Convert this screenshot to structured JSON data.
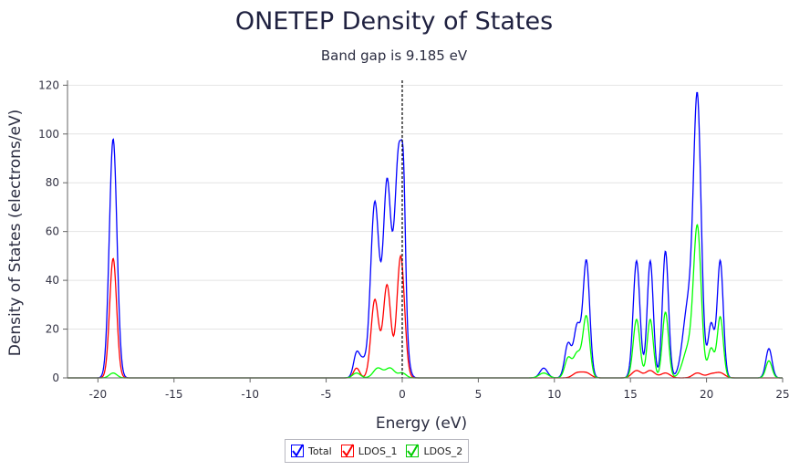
{
  "chart_data": {
    "type": "line",
    "title": "ONETEP Density of States",
    "subtitle": "Band gap is 9.185 eV",
    "xlabel": "Energy (eV)",
    "ylabel": "Density of States (electrons/eV)",
    "xlim": [
      -22,
      25
    ],
    "ylim": [
      0,
      122
    ],
    "xticks": [
      -20,
      -15,
      -10,
      -5,
      0,
      5,
      10,
      15,
      20,
      25
    ],
    "yticks": [
      0,
      20,
      40,
      60,
      80,
      100,
      120
    ],
    "fermi_level": 0,
    "legend_position": "bottom-center",
    "series": [
      {
        "name": "Total",
        "color": "#0000ff",
        "checked": true,
        "peaks": [
          [
            -19.0,
            98,
            0.25
          ],
          [
            -3.0,
            10,
            0.2
          ],
          [
            -2.6,
            6,
            0.2
          ],
          [
            -1.8,
            72,
            0.28
          ],
          [
            -1.0,
            78,
            0.25
          ],
          [
            -0.2,
            95,
            0.3
          ],
          [
            0.1,
            30,
            0.12
          ],
          [
            9.3,
            4,
            0.25
          ],
          [
            10.9,
            14,
            0.22
          ],
          [
            11.5,
            21,
            0.22
          ],
          [
            12.1,
            48,
            0.22
          ],
          [
            15.4,
            48,
            0.22
          ],
          [
            16.3,
            48,
            0.2
          ],
          [
            17.3,
            52,
            0.2
          ],
          [
            18.8,
            30,
            0.35
          ],
          [
            19.4,
            110,
            0.25
          ],
          [
            20.3,
            22,
            0.2
          ],
          [
            20.9,
            48,
            0.2
          ],
          [
            24.1,
            12,
            0.2
          ]
        ]
      },
      {
        "name": "LDOS_1",
        "color": "#ff0000",
        "checked": true,
        "peaks": [
          [
            -19.0,
            49,
            0.23
          ],
          [
            -3.0,
            4,
            0.2
          ],
          [
            -1.8,
            32,
            0.25
          ],
          [
            -1.0,
            38,
            0.25
          ],
          [
            -0.1,
            50,
            0.25
          ],
          [
            11.5,
            2,
            0.3
          ],
          [
            12.1,
            2,
            0.3
          ],
          [
            15.4,
            3,
            0.3
          ],
          [
            16.3,
            3,
            0.3
          ],
          [
            17.3,
            2,
            0.3
          ],
          [
            19.4,
            2,
            0.3
          ],
          [
            20.3,
            1.5,
            0.3
          ],
          [
            20.9,
            2,
            0.3
          ]
        ]
      },
      {
        "name": "LDOS_2",
        "color": "#00ff00",
        "checked": true,
        "peaks": [
          [
            -19.0,
            2,
            0.25
          ],
          [
            -3.0,
            2,
            0.25
          ],
          [
            -1.6,
            4,
            0.3
          ],
          [
            -0.8,
            4,
            0.3
          ],
          [
            0.0,
            2,
            0.25
          ],
          [
            9.3,
            2,
            0.3
          ],
          [
            10.9,
            8,
            0.22
          ],
          [
            11.5,
            10,
            0.25
          ],
          [
            12.1,
            25,
            0.22
          ],
          [
            15.4,
            24,
            0.22
          ],
          [
            16.3,
            24,
            0.2
          ],
          [
            17.3,
            27,
            0.2
          ],
          [
            18.8,
            12,
            0.35
          ],
          [
            19.4,
            60,
            0.25
          ],
          [
            20.3,
            12,
            0.2
          ],
          [
            20.9,
            25,
            0.2
          ],
          [
            24.1,
            7,
            0.2
          ]
        ]
      }
    ]
  }
}
